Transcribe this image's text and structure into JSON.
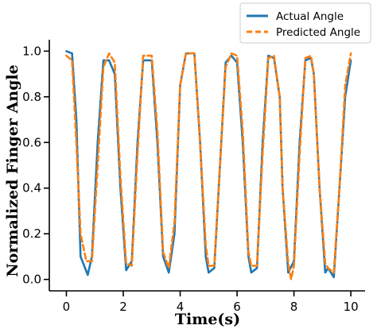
{
  "chart_data": {
    "type": "line",
    "xlabel": "Time(s)",
    "ylabel": "Normalized Finger Angle",
    "xlim": [
      -0.6,
      10.5
    ],
    "ylim": [
      -0.05,
      1.05
    ],
    "xticks": [
      0,
      2,
      4,
      6,
      8,
      10
    ],
    "yticks": [
      0.0,
      0.2,
      0.4,
      0.6,
      0.8,
      1.0
    ],
    "xtick_labels": [
      "0",
      "2",
      "4",
      "6",
      "8",
      "10"
    ],
    "ytick_labels": [
      "0.0",
      "0.2",
      "0.4",
      "0.6",
      "0.8",
      "1.0"
    ],
    "grid": false,
    "legend_position": "top-right",
    "series": [
      {
        "name": "Actual Angle",
        "color": "#1f77b4",
        "style": "solid",
        "points": [
          [
            0.0,
            1.0
          ],
          [
            0.2,
            0.99
          ],
          [
            0.35,
            0.7
          ],
          [
            0.5,
            0.1
          ],
          [
            0.75,
            0.02
          ],
          [
            0.9,
            0.1
          ],
          [
            1.1,
            0.6
          ],
          [
            1.3,
            0.96
          ],
          [
            1.5,
            0.96
          ],
          [
            1.7,
            0.9
          ],
          [
            1.9,
            0.4
          ],
          [
            2.1,
            0.04
          ],
          [
            2.3,
            0.08
          ],
          [
            2.5,
            0.6
          ],
          [
            2.7,
            0.96
          ],
          [
            3.0,
            0.96
          ],
          [
            3.2,
            0.6
          ],
          [
            3.4,
            0.1
          ],
          [
            3.6,
            0.03
          ],
          [
            3.8,
            0.2
          ],
          [
            4.0,
            0.85
          ],
          [
            4.2,
            0.99
          ],
          [
            4.5,
            0.99
          ],
          [
            4.7,
            0.6
          ],
          [
            4.9,
            0.1
          ],
          [
            5.0,
            0.03
          ],
          [
            5.2,
            0.05
          ],
          [
            5.4,
            0.5
          ],
          [
            5.6,
            0.95
          ],
          [
            5.8,
            0.98
          ],
          [
            6.0,
            0.95
          ],
          [
            6.2,
            0.6
          ],
          [
            6.4,
            0.1
          ],
          [
            6.5,
            0.03
          ],
          [
            6.7,
            0.05
          ],
          [
            6.9,
            0.6
          ],
          [
            7.1,
            0.98
          ],
          [
            7.3,
            0.97
          ],
          [
            7.5,
            0.8
          ],
          [
            7.6,
            0.4
          ],
          [
            7.8,
            0.03
          ],
          [
            8.0,
            0.08
          ],
          [
            8.2,
            0.6
          ],
          [
            8.4,
            0.96
          ],
          [
            8.6,
            0.97
          ],
          [
            8.7,
            0.9
          ],
          [
            8.9,
            0.4
          ],
          [
            9.1,
            0.03
          ],
          [
            9.2,
            0.05
          ],
          [
            9.4,
            0.01
          ],
          [
            9.6,
            0.4
          ],
          [
            9.8,
            0.8
          ],
          [
            10.0,
            0.96
          ]
        ]
      },
      {
        "name": "Predicted Angle",
        "color": "#ff7f0e",
        "style": "dashed",
        "points": [
          [
            0.0,
            0.98
          ],
          [
            0.2,
            0.96
          ],
          [
            0.35,
            0.6
          ],
          [
            0.5,
            0.2
          ],
          [
            0.7,
            0.08
          ],
          [
            0.9,
            0.08
          ],
          [
            1.1,
            0.5
          ],
          [
            1.3,
            0.93
          ],
          [
            1.5,
            0.99
          ],
          [
            1.7,
            0.95
          ],
          [
            1.9,
            0.45
          ],
          [
            2.1,
            0.07
          ],
          [
            2.3,
            0.06
          ],
          [
            2.5,
            0.55
          ],
          [
            2.7,
            0.98
          ],
          [
            3.0,
            0.98
          ],
          [
            3.2,
            0.65
          ],
          [
            3.4,
            0.12
          ],
          [
            3.6,
            0.05
          ],
          [
            3.8,
            0.25
          ],
          [
            4.0,
            0.85
          ],
          [
            4.2,
            0.99
          ],
          [
            4.5,
            0.99
          ],
          [
            4.7,
            0.6
          ],
          [
            4.9,
            0.15
          ],
          [
            5.0,
            0.06
          ],
          [
            5.2,
            0.06
          ],
          [
            5.4,
            0.5
          ],
          [
            5.6,
            0.93
          ],
          [
            5.8,
            0.99
          ],
          [
            6.0,
            0.98
          ],
          [
            6.2,
            0.65
          ],
          [
            6.4,
            0.12
          ],
          [
            6.5,
            0.06
          ],
          [
            6.7,
            0.06
          ],
          [
            6.9,
            0.55
          ],
          [
            7.1,
            0.97
          ],
          [
            7.3,
            0.98
          ],
          [
            7.5,
            0.8
          ],
          [
            7.6,
            0.4
          ],
          [
            7.8,
            0.07
          ],
          [
            7.9,
            0.0
          ],
          [
            8.0,
            0.06
          ],
          [
            8.2,
            0.55
          ],
          [
            8.4,
            0.97
          ],
          [
            8.6,
            0.98
          ],
          [
            8.7,
            0.9
          ],
          [
            8.9,
            0.4
          ],
          [
            9.1,
            0.07
          ],
          [
            9.2,
            0.05
          ],
          [
            9.4,
            0.03
          ],
          [
            9.6,
            0.4
          ],
          [
            9.8,
            0.85
          ],
          [
            10.0,
            0.99
          ]
        ]
      }
    ]
  }
}
